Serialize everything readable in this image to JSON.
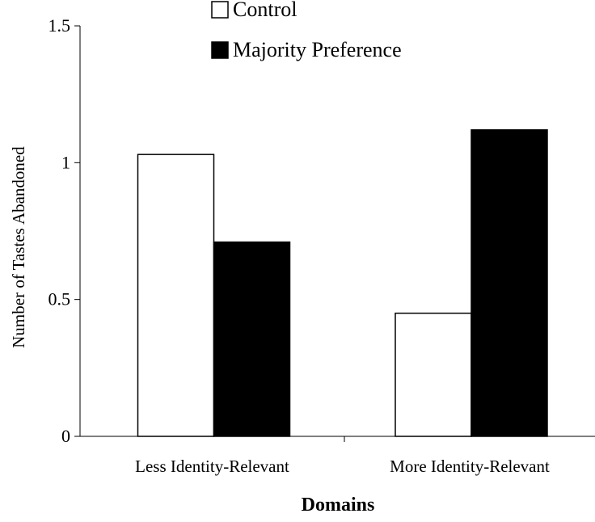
{
  "chart_data": {
    "type": "bar",
    "title": "",
    "xlabel": "Domains",
    "ylabel": "Number of Tastes Abandoned",
    "categories": [
      "Less Identity-Relevant",
      "More Identity-Relevant"
    ],
    "series": [
      {
        "name": "Control",
        "values": [
          1.03,
          0.45
        ],
        "color": "#ffffff"
      },
      {
        "name": "Majority Preference",
        "values": [
          0.71,
          1.12
        ],
        "color": "#000000"
      }
    ],
    "ylim": [
      0,
      1.5
    ],
    "yticks": [
      0,
      0.5,
      1,
      1.5
    ],
    "ytick_labels": [
      "0",
      "0.5",
      "1",
      "1.5"
    ],
    "grid": false,
    "legend_position": "top-center"
  }
}
